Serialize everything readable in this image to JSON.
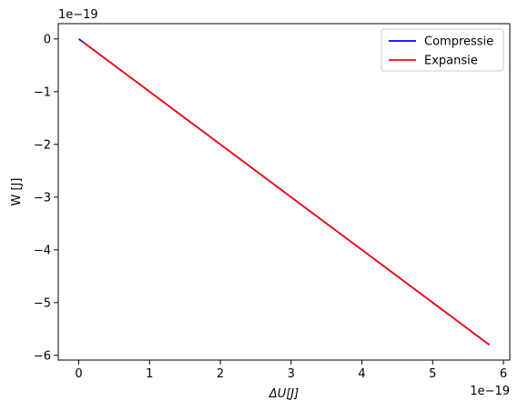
{
  "chart_data": {
    "type": "line",
    "title": "",
    "xlabel": "ΔU[J]",
    "ylabel": "W [J]",
    "x_offset_text": "1e−19",
    "y_offset_text": "1e−19",
    "xlim": [
      -0.29,
      6.09
    ],
    "ylim": [
      -6.09,
      0.29
    ],
    "x_ticks": [
      0,
      1,
      2,
      3,
      4,
      5,
      6
    ],
    "y_ticks": [
      0,
      -1,
      -2,
      -3,
      -4,
      -5,
      -6
    ],
    "x_tick_labels": [
      "0",
      "1",
      "2",
      "3",
      "4",
      "5",
      "6"
    ],
    "y_tick_labels": [
      "0",
      "−1",
      "−2",
      "−3",
      "−4",
      "−5",
      "−6"
    ],
    "grid": false,
    "legend_position": "top-right",
    "series": [
      {
        "name": "Compressie",
        "color": "#0000ff",
        "x": [
          0,
          5.8
        ],
        "y": [
          0,
          -5.8
        ]
      },
      {
        "name": "Expansie",
        "color": "#ff0000",
        "x": [
          0.05,
          5.8
        ],
        "y": [
          -0.05,
          -5.8
        ]
      }
    ]
  }
}
